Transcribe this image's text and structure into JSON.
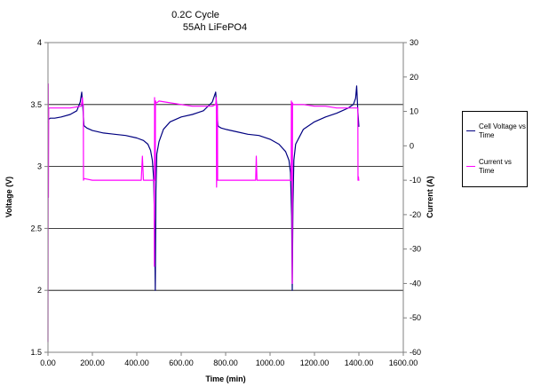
{
  "chart_data": {
    "type": "line",
    "title": "0.2C Cycle",
    "subtitle": "55Ah LiFePO4",
    "xlabel": "Time (min)",
    "ylabel": "Voltage (V)",
    "y2label": "Current (A)",
    "xlim": [
      0,
      1600
    ],
    "ylim": [
      1.5,
      4
    ],
    "y2lim": [
      -60,
      30
    ],
    "xticks": [
      "0.00",
      "200.00",
      "400.00",
      "600.00",
      "800.00",
      "1000.00",
      "1200.00",
      "1400.00",
      "1600.00"
    ],
    "yticks": [
      "1.5",
      "2",
      "2.5",
      "3",
      "3.5",
      "4"
    ],
    "y2ticks": [
      "-60",
      "-50",
      "-40",
      "-30",
      "-20",
      "-10",
      "0",
      "10",
      "20",
      "30"
    ],
    "grid": "horizontal",
    "legend_position": "right",
    "series": [
      {
        "name": "Cell Voltage vs Time",
        "axis": "left",
        "color": "#000080",
        "x": [
          0,
          2,
          10,
          30,
          60,
          100,
          130,
          145,
          152,
          158,
          162,
          168,
          175,
          200,
          250,
          300,
          350,
          400,
          430,
          450,
          462,
          470,
          476,
          480,
          483,
          486,
          490,
          500,
          520,
          550,
          600,
          650,
          700,
          740,
          755,
          760,
          765,
          770,
          780,
          800,
          850,
          900,
          950,
          1000,
          1040,
          1070,
          1085,
          1092,
          1097,
          1100,
          1103,
          1107,
          1115,
          1150,
          1200,
          1250,
          1300,
          1350,
          1375,
          1385,
          1390,
          1395,
          1400
        ],
        "y": [
          3.36,
          3.38,
          3.39,
          3.39,
          3.4,
          3.42,
          3.45,
          3.52,
          3.6,
          3.45,
          3.33,
          3.32,
          3.31,
          3.29,
          3.27,
          3.26,
          3.25,
          3.23,
          3.21,
          3.18,
          3.13,
          3.05,
          2.9,
          2.55,
          2.0,
          2.8,
          3.1,
          3.2,
          3.3,
          3.36,
          3.4,
          3.42,
          3.45,
          3.52,
          3.6,
          3.48,
          3.33,
          3.32,
          3.31,
          3.3,
          3.28,
          3.26,
          3.25,
          3.22,
          3.18,
          3.12,
          3.05,
          2.95,
          2.6,
          2.0,
          2.7,
          3.05,
          3.18,
          3.3,
          3.36,
          3.4,
          3.43,
          3.47,
          3.5,
          3.55,
          3.65,
          3.45,
          3.32
        ]
      },
      {
        "name": "Current vs Time",
        "axis": "right",
        "color": "#ff00ff",
        "x": [
          0,
          1,
          2,
          3,
          10,
          100,
          150,
          155,
          157,
          159,
          160,
          162,
          200,
          250,
          300,
          350,
          400,
          420,
          425,
          430,
          470,
          478,
          479,
          480,
          481,
          483,
          484,
          485,
          486,
          490,
          500,
          550,
          600,
          650,
          700,
          740,
          755,
          758,
          759,
          760,
          762,
          763,
          764,
          765,
          770,
          800,
          850,
          900,
          935,
          938,
          941,
          950,
          1000,
          1050,
          1090,
          1095,
          1096,
          1098,
          1099,
          1100,
          1101,
          1103,
          1110,
          1150,
          1200,
          1250,
          1300,
          1350,
          1390,
          1395,
          1396,
          1398,
          1399,
          1402
        ],
        "y": [
          -57,
          18,
          -15,
          11,
          11,
          11,
          11.5,
          14,
          12,
          12,
          -10,
          -9.5,
          -10,
          -10,
          -10,
          -10,
          -10,
          -10,
          -3,
          -10,
          -10,
          -10,
          -35,
          14,
          -10,
          -10,
          13,
          13,
          12.5,
          12.5,
          13,
          12.5,
          12,
          11.5,
          11.5,
          11.5,
          12,
          14,
          -12,
          -9,
          -9,
          12,
          -10,
          -10,
          -10,
          -10,
          -10,
          -10,
          -10,
          -3,
          -10,
          -10,
          -10,
          -10,
          -10,
          -10,
          13,
          12,
          -10,
          -40,
          12.5,
          12,
          12,
          12,
          11.5,
          11.5,
          11,
          11,
          11,
          11,
          -10,
          -9,
          -10,
          -10
        ]
      }
    ]
  }
}
